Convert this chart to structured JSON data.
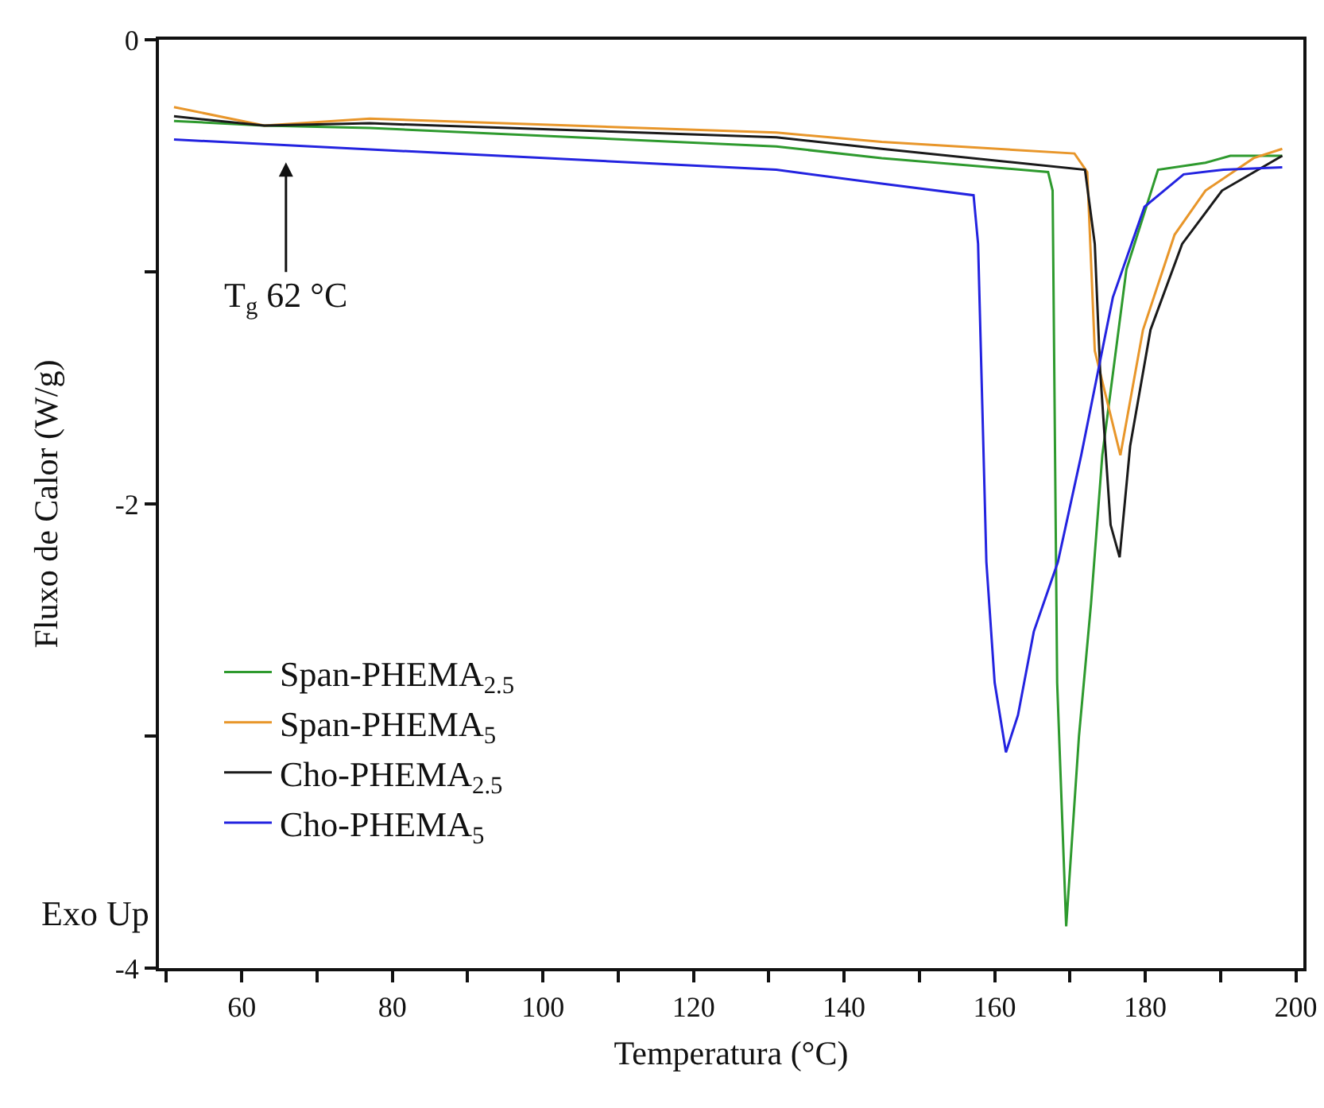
{
  "chart_data": {
    "type": "line",
    "xlabel": "Temperatura (°C)",
    "ylabel": "Fluxo de Calor (W/g)",
    "xlim": [
      49,
      201
    ],
    "ylim": [
      -4,
      0
    ],
    "xticks": [
      {
        "value": 50,
        "label": null
      },
      60,
      {
        "value": 70,
        "label": null
      },
      80,
      {
        "value": 90,
        "label": null
      },
      100,
      {
        "value": 110,
        "label": null
      },
      120,
      {
        "value": 130,
        "label": null
      },
      140,
      {
        "value": 150,
        "label": null
      },
      160,
      {
        "value": 170,
        "label": null
      },
      180,
      {
        "value": 190,
        "label": null
      },
      200
    ],
    "yticks": [
      -4,
      {
        "value": -3,
        "label": null
      },
      -2,
      {
        "value": -1,
        "label": null
      },
      0
    ],
    "grid": false,
    "legend": "bottom left",
    "marker": "none",
    "line_style": "solid",
    "annotations": [
      "T$_{g}$ 62 °C",
      "Exo Up"
    ],
    "series": [
      {
        "name": "Span-PHEMA$_{2.5}$",
        "color": "#2e9a2e",
        "x": [
          51,
          63,
          77,
          131,
          145,
          167.1,
          167.7,
          168.3,
          169.5,
          171.2,
          172.8,
          174.3,
          177.5,
          181.7,
          188,
          191.3,
          198.2
        ],
        "values": [
          -0.35,
          -0.37,
          -0.38,
          -0.46,
          -0.51,
          -0.57,
          -0.65,
          -2.77,
          -3.82,
          -3.0,
          -2.43,
          -1.79,
          -0.99,
          -0.56,
          -0.53,
          -0.5,
          -0.5
        ]
      },
      {
        "name": "Span-PHEMA$_{5}$",
        "color": "#e8962a",
        "x": [
          51,
          63,
          77,
          131,
          145,
          170.6,
          172.3,
          173.3,
          176.7,
          179.7,
          183.9,
          188,
          194.4,
          198.2
        ],
        "values": [
          -0.29,
          -0.37,
          -0.34,
          -0.4,
          -0.44,
          -0.49,
          -0.57,
          -1.34,
          -1.79,
          -1.25,
          -0.84,
          -0.65,
          -0.51,
          -0.47
        ]
      },
      {
        "name": "Cho-PHEMA$_{2.5}$",
        "color": "#1a1a1a",
        "x": [
          51,
          63,
          77,
          131,
          145,
          172,
          173.3,
          174,
          175.4,
          176.6,
          178,
          180.7,
          184.9,
          190.2,
          198.2
        ],
        "values": [
          -0.33,
          -0.37,
          -0.36,
          -0.42,
          -0.47,
          -0.56,
          -0.88,
          -1.42,
          -2.09,
          -2.23,
          -1.75,
          -1.25,
          -0.88,
          -0.65,
          -0.5
        ]
      },
      {
        "name": "Cho-PHEMA$_{5}$",
        "color": "#2323e0",
        "x": [
          51,
          131,
          145,
          157.2,
          157.8,
          158.9,
          160,
          161.5,
          163.1,
          165.2,
          168.4,
          171.5,
          175.7,
          179.9,
          185.1,
          190.4,
          198.2
        ],
        "values": [
          -0.43,
          -0.56,
          -0.62,
          -0.67,
          -0.88,
          -2.25,
          -2.77,
          -3.07,
          -2.91,
          -2.55,
          -2.25,
          -1.79,
          -1.11,
          -0.72,
          -0.58,
          -0.56,
          -0.55
        ]
      }
    ]
  }
}
